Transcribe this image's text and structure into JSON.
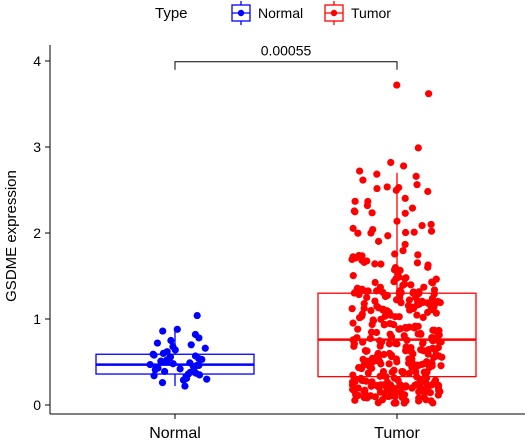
{
  "chart_data": {
    "type": "boxplot",
    "ylabel": "GSDME expression",
    "xlabel": "",
    "ylim": [
      -0.1,
      4.1
    ],
    "yticks": [
      0,
      1,
      2,
      3,
      4
    ],
    "categories": [
      "Normal",
      "Tumor"
    ],
    "legend": {
      "title": "Type",
      "position": "top",
      "entries": [
        "Normal",
        "Tumor"
      ]
    },
    "colors": {
      "Normal": "#0000ff",
      "Tumor": "#ff0000"
    },
    "series": [
      {
        "name": "Normal",
        "box": {
          "min": 0.22,
          "q1": 0.36,
          "median": 0.47,
          "q3": 0.59,
          "max": 0.88
        },
        "points": [
          0.22,
          0.26,
          0.29,
          0.3,
          0.31,
          0.33,
          0.34,
          0.35,
          0.36,
          0.37,
          0.38,
          0.39,
          0.4,
          0.41,
          0.42,
          0.43,
          0.44,
          0.45,
          0.46,
          0.46,
          0.47,
          0.48,
          0.49,
          0.5,
          0.51,
          0.52,
          0.53,
          0.54,
          0.55,
          0.56,
          0.57,
          0.58,
          0.59,
          0.6,
          0.62,
          0.64,
          0.66,
          0.68,
          0.7,
          0.72,
          0.75,
          0.78,
          0.82,
          0.86,
          0.88,
          1.04
        ]
      },
      {
        "name": "Tumor",
        "box": {
          "min": 0.02,
          "q1": 0.33,
          "median": 0.76,
          "q3": 1.3,
          "max": 2.7
        },
        "outliers": [
          2.72,
          2.78,
          2.82,
          2.99,
          3.62,
          3.72
        ]
      }
    ],
    "annotation": {
      "text": "0.00055",
      "between": [
        "Normal",
        "Tumor"
      ],
      "y": 4.05
    }
  }
}
